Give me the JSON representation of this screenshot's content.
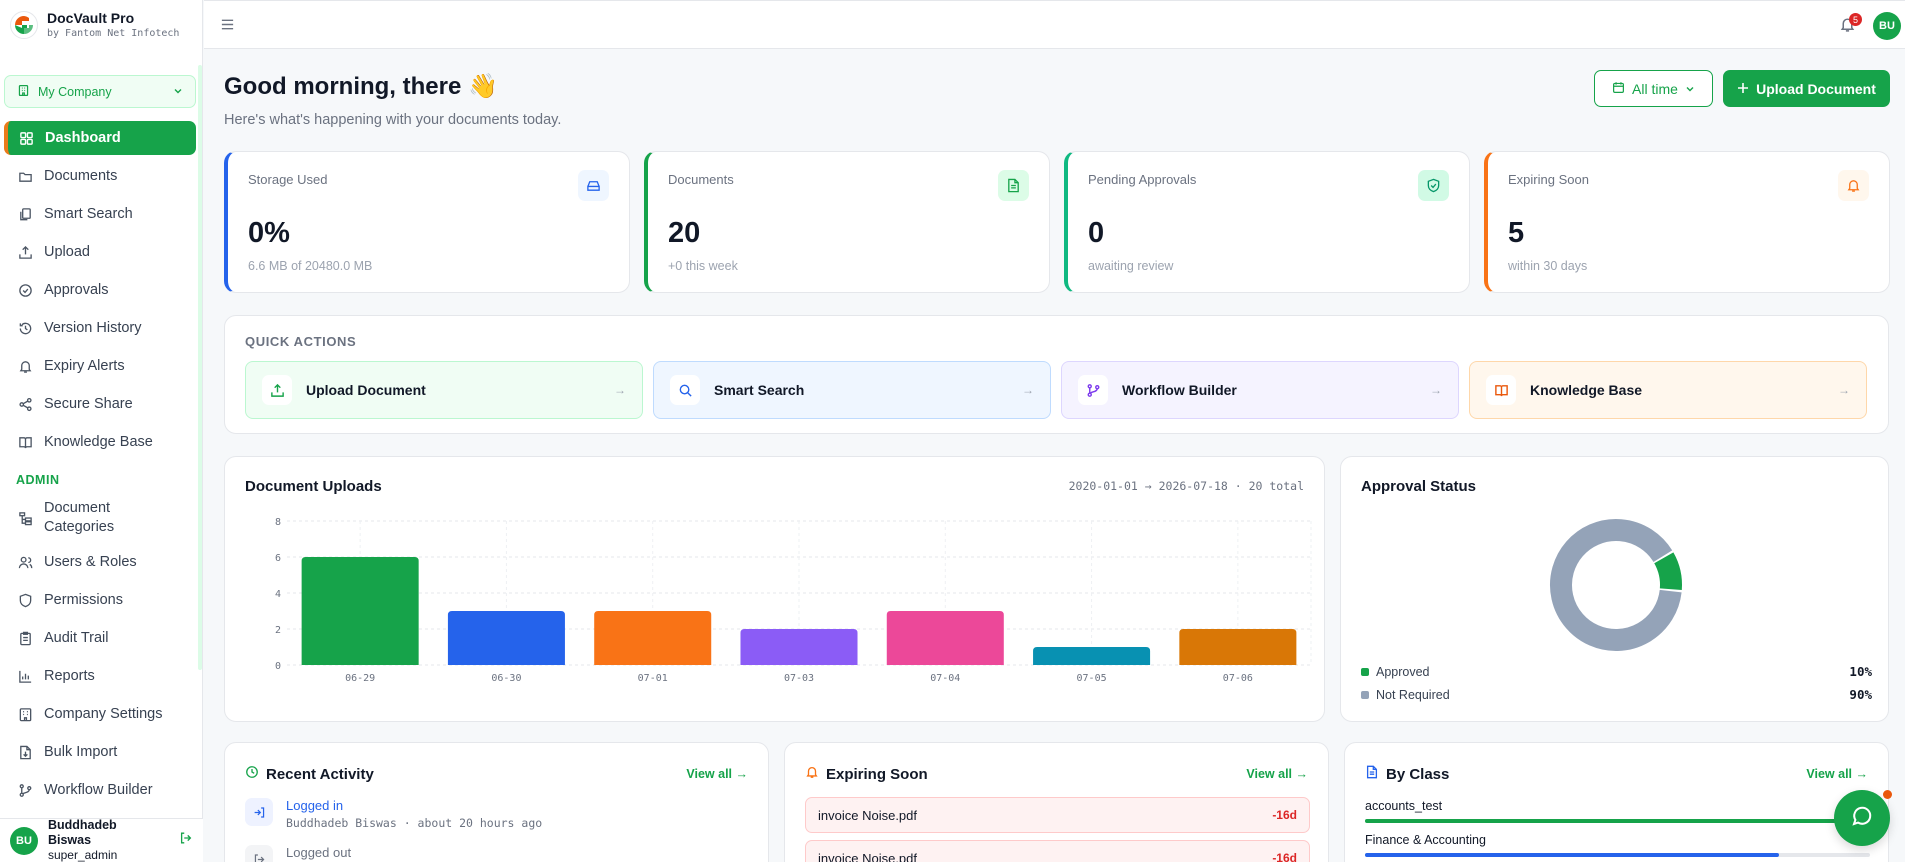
{
  "brand": {
    "title": "DocVault Pro",
    "subtitle": "by Fantom Net Infotech"
  },
  "company_selector": {
    "label": "My Company"
  },
  "nav": {
    "items": [
      {
        "label": "Dashboard",
        "icon": "grid-icon",
        "active": true
      },
      {
        "label": "Documents",
        "icon": "folder-icon"
      },
      {
        "label": "Smart Search",
        "icon": "copy-search-icon"
      },
      {
        "label": "Upload",
        "icon": "upload-icon"
      },
      {
        "label": "Approvals",
        "icon": "check-circle-icon"
      },
      {
        "label": "Version History",
        "icon": "history-icon"
      },
      {
        "label": "Expiry Alerts",
        "icon": "bell-icon"
      },
      {
        "label": "Secure Share",
        "icon": "share-icon"
      },
      {
        "label": "Knowledge Base",
        "icon": "book-icon"
      }
    ],
    "admin_section_label": "ADMIN",
    "admin_items": [
      {
        "label": "Document Categories",
        "icon": "tree-icon"
      },
      {
        "label": "Users & Roles",
        "icon": "users-icon"
      },
      {
        "label": "Permissions",
        "icon": "shield-icon"
      },
      {
        "label": "Audit Trail",
        "icon": "clipboard-icon"
      },
      {
        "label": "Reports",
        "icon": "bar-chart-icon"
      },
      {
        "label": "Company Settings",
        "icon": "building-icon"
      },
      {
        "label": "Bulk Import",
        "icon": "file-import-icon"
      },
      {
        "label": "Workflow Builder",
        "icon": "workflow-icon"
      }
    ]
  },
  "user": {
    "initials": "BU",
    "name": "Buddhadeb Biswas",
    "role": "super_admin"
  },
  "topbar": {
    "notification_count": "5",
    "avatar_initials": "BU"
  },
  "header": {
    "greeting": "Good morning, there 👋",
    "subtitle": "Here's what's happening with your documents today.",
    "time_filter": "All time",
    "upload_button": "Upload Document"
  },
  "stats": [
    {
      "label": "Storage Used",
      "value": "0%",
      "sub": "6.6 MB of 20480.0 MB",
      "color": "#2563eb",
      "icon": "hard-drive-icon"
    },
    {
      "label": "Documents",
      "value": "20",
      "sub": "+0 this week",
      "color": "#16a34a",
      "icon": "file-text-icon"
    },
    {
      "label": "Pending Approvals",
      "value": "0",
      "sub": "awaiting review",
      "color": "#10b981",
      "icon": "shield-check-icon"
    },
    {
      "label": "Expiring Soon",
      "value": "5",
      "sub": "within 30 days",
      "color": "#f97316",
      "icon": "bell-icon"
    }
  ],
  "quick_actions": {
    "title": "QUICK ACTIONS",
    "items": [
      {
        "label": "Upload Document",
        "icon": "upload-icon",
        "bg": "#f0fdf4",
        "border": "#bbf7d0"
      },
      {
        "label": "Smart Search",
        "icon": "search-icon",
        "bg": "#eff6ff",
        "border": "#bfdbfe"
      },
      {
        "label": "Workflow Builder",
        "icon": "git-branch-icon",
        "bg": "#f5f3ff",
        "border": "#ddd6fe"
      },
      {
        "label": "Knowledge Base",
        "icon": "book-icon",
        "bg": "#fff7ed",
        "border": "#fed7aa"
      }
    ]
  },
  "uploads_panel": {
    "title": "Document Uploads",
    "range": "2020-01-01 → 2026-07-18 · 20 total"
  },
  "chart_data": [
    {
      "type": "bar",
      "title": "Document Uploads",
      "categories": [
        "06-29",
        "06-30",
        "07-01",
        "07-03",
        "07-04",
        "07-05",
        "07-06"
      ],
      "values": [
        6,
        3,
        3,
        2,
        3,
        1,
        2
      ],
      "colors": [
        "#16a34a",
        "#2563eb",
        "#f97316",
        "#8b5cf6",
        "#ec4899",
        "#0891b2",
        "#d97706"
      ],
      "ylim": [
        0,
        8
      ],
      "yticks": [
        0,
        2,
        4,
        6,
        8
      ],
      "grid": true
    },
    {
      "type": "pie",
      "title": "Approval Status",
      "labels": [
        "Approved",
        "Not Required"
      ],
      "values": [
        10,
        90
      ],
      "display": [
        "10%",
        "90%"
      ],
      "colors": [
        "#16a34a",
        "#94a3b8"
      ]
    }
  ],
  "recent_activity": {
    "title": "Recent Activity",
    "view_all": "View all →",
    "items": [
      {
        "title": "Logged in",
        "meta": "Buddhadeb Biswas · about 20 hours ago"
      },
      {
        "title": "Logged out",
        "meta": ""
      }
    ]
  },
  "expiring_soon": {
    "title": "Expiring Soon",
    "view_all": "View all →",
    "items": [
      {
        "name": "invoice Noise.pdf",
        "days": "-16d"
      },
      {
        "name": "invoice Noise.pdf",
        "days": "-16d"
      }
    ]
  },
  "by_class": {
    "title": "By Class",
    "view_all": "View all →",
    "items": [
      {
        "name": "accounts_test",
        "fraction": 1.0,
        "color": "#16a34a"
      },
      {
        "name": "Finance & Accounting",
        "fraction": 0.82,
        "color": "#2563eb"
      }
    ]
  }
}
